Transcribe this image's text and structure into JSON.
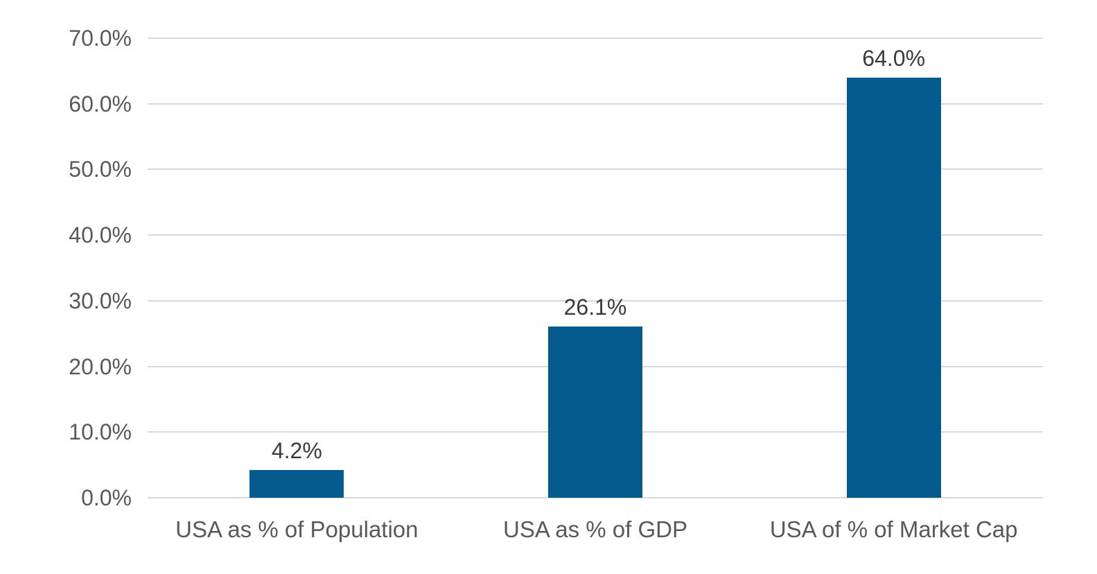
{
  "chart_data": {
    "type": "bar",
    "title": "",
    "xlabel": "",
    "ylabel": "",
    "categories": [
      "USA as % of Population",
      "USA as % of GDP",
      "USA of % of Market Cap"
    ],
    "values": [
      4.2,
      26.1,
      64.0
    ],
    "data_labels": [
      "4.2%",
      "26.1%",
      "64.0%"
    ],
    "ylim": [
      0,
      70
    ],
    "ytick_step": 10,
    "ytick_labels": [
      "0.0%",
      "10.0%",
      "20.0%",
      "30.0%",
      "40.0%",
      "50.0%",
      "60.0%",
      "70.0%"
    ],
    "grid": true,
    "legend": false,
    "colors": {
      "bar": "#055a8e",
      "gridline": "#d9d9d9",
      "tick_label": "#595959",
      "category_label": "#595959",
      "data_label": "#3a3a3a",
      "background": "#ffffff"
    }
  }
}
